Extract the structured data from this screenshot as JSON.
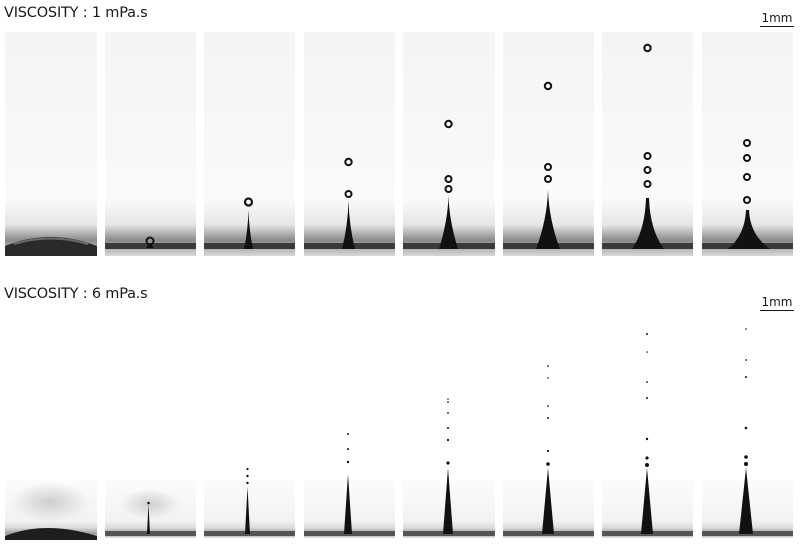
{
  "rows": [
    {
      "title": "VISCOSITY : 1 mPa.s",
      "scale_label": "1mm"
    },
    {
      "title": "VISCOSITY : 6 mPa.s",
      "scale_label": "1mm"
    }
  ],
  "panel_count_per_row": 8
}
